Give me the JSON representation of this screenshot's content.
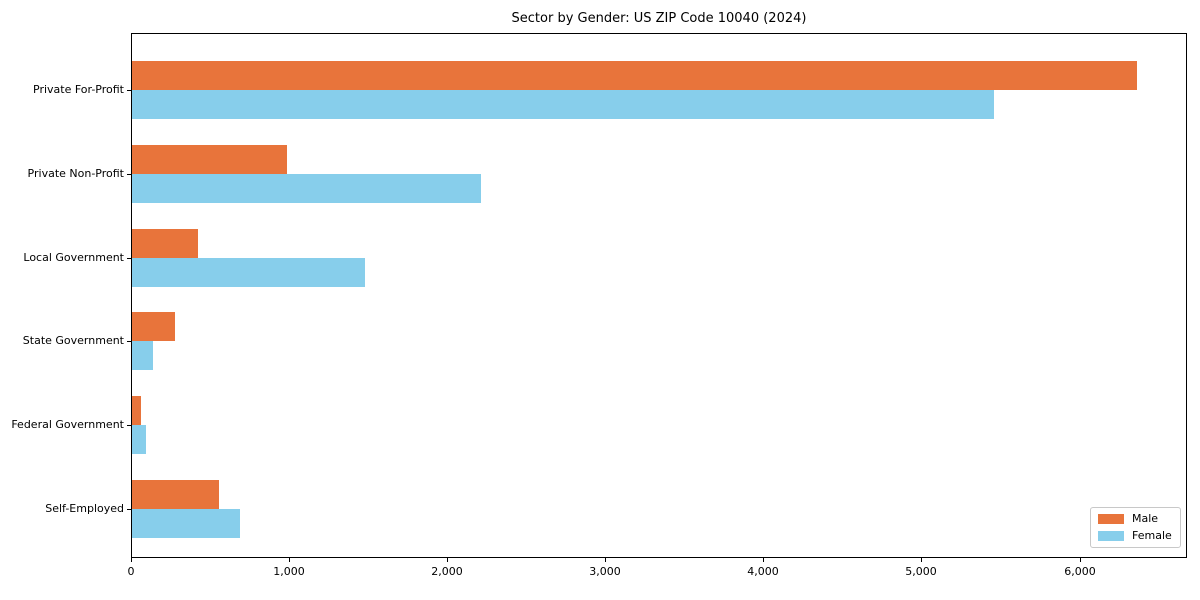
{
  "chart_data": {
    "type": "bar",
    "orientation": "horizontal",
    "title": "Sector by Gender: US ZIP Code 10040 (2024)",
    "categories": [
      "Private For-Profit",
      "Private Non-Profit",
      "Local Government",
      "State Government",
      "Federal Government",
      "Self-Employed"
    ],
    "series": [
      {
        "name": "Male",
        "color": "#e8743b",
        "values": [
          6360,
          980,
          420,
          275,
          55,
          550
        ]
      },
      {
        "name": "Female",
        "color": "#87ceeb",
        "values": [
          5450,
          2210,
          1475,
          130,
          90,
          685
        ]
      }
    ],
    "xlabel": "",
    "ylabel": "",
    "xlim": [
      0,
      6680
    ],
    "xticks": {
      "values": [
        0,
        1000,
        2000,
        3000,
        4000,
        5000,
        6000
      ],
      "labels": [
        "0",
        "1,000",
        "2,000",
        "3,000",
        "4,000",
        "5,000",
        "6,000"
      ]
    },
    "grid": false,
    "legend": {
      "position": "lower right",
      "entries": [
        "Male",
        "Female"
      ]
    },
    "colors": {
      "male": "#e8743b",
      "female": "#87ceeb",
      "axis": "#000000",
      "background": "#ffffff",
      "legend_border": "#c8c8c8"
    }
  }
}
